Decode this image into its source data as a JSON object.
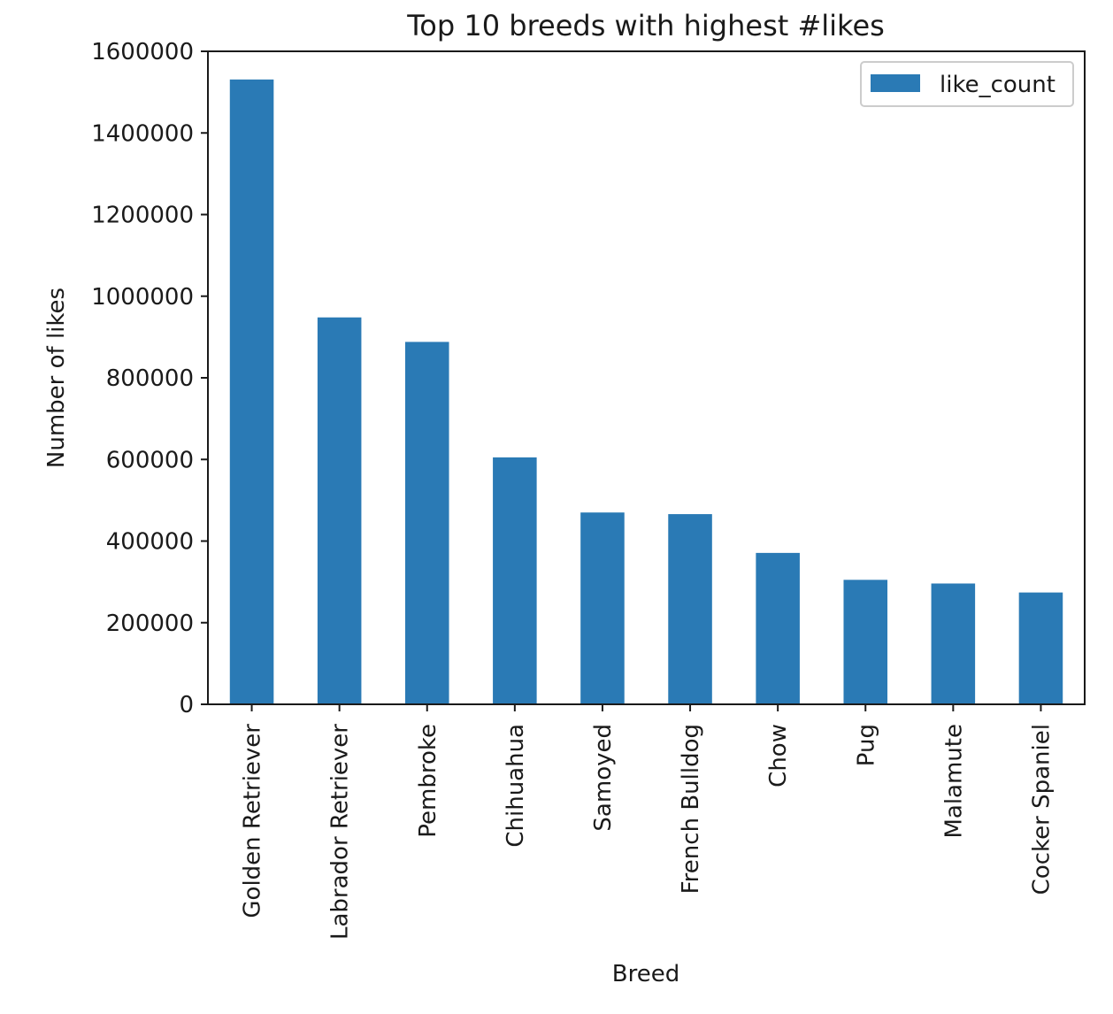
{
  "chart_data": {
    "type": "bar",
    "title": "Top 10 breeds with highest #likes",
    "xlabel": "Breed",
    "ylabel": "Number of likes",
    "categories": [
      "Golden Retriever",
      "Labrador Retriever",
      "Pembroke",
      "Chihuahua",
      "Samoyed",
      "French Bulldog",
      "Chow",
      "Pug",
      "Malamute",
      "Cocker Spaniel"
    ],
    "series": [
      {
        "name": "like_count",
        "values": [
          1531000,
          948000,
          888000,
          605000,
          470000,
          466000,
          371000,
          305000,
          296000,
          274000
        ]
      }
    ],
    "ylim": [
      0,
      1600000
    ],
    "yticks": [
      0,
      200000,
      400000,
      600000,
      800000,
      1000000,
      1200000,
      1400000,
      1600000
    ],
    "ytick_labels": [
      "0",
      "200000",
      "400000",
      "600000",
      "800000",
      "1000000",
      "1200000",
      "1400000",
      "1600000"
    ],
    "grid": false,
    "legend_position": "top-right",
    "colors": {
      "bar": "#2a7ab5",
      "axis": "#1a1a1a",
      "background": "#ffffff"
    }
  }
}
